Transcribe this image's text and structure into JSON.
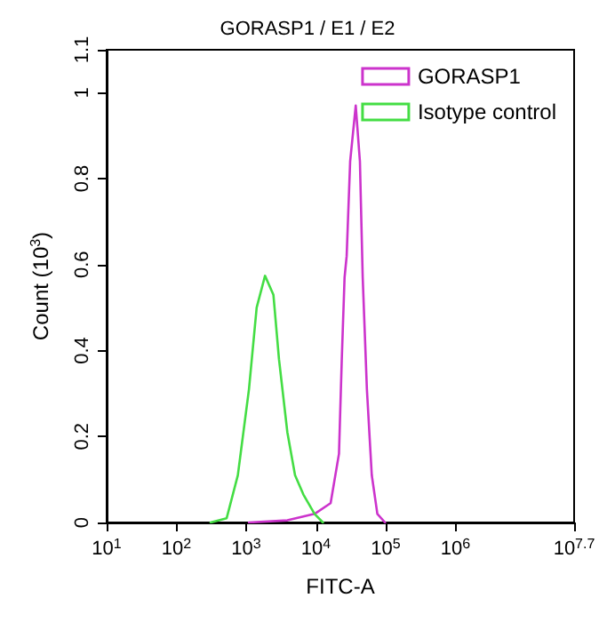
{
  "chart_data": {
    "type": "line",
    "title": "GORASP1 / E1 / E2",
    "xlabel": "FITC-A",
    "ylabel": "Count (10$^{3}$)",
    "log": "x",
    "xlim": [
      10,
      50118723
    ],
    "xticks": [
      {
        "value": 10,
        "label": "10$^{1}$"
      },
      {
        "value": 100,
        "label": "10$^{2}$"
      },
      {
        "value": 1000,
        "label": "10$^{3}$"
      },
      {
        "value": 10000,
        "label": "10$^{4}$"
      },
      {
        "value": 100000,
        "label": "10$^{5}$"
      },
      {
        "value": 1000000,
        "label": "10$^{6}$"
      },
      {
        "value": 50118723,
        "label": "10$^{7.7}$"
      }
    ],
    "ylim": [
      0,
      1.1
    ],
    "yticks": [
      0,
      0.2,
      0.4,
      0.6,
      0.8,
      1,
      1.1
    ],
    "grid": false,
    "legend": "top right",
    "marker": "none",
    "line_style": "solid",
    "series": [
      {
        "name": "GORASP1",
        "color": "#cc33cc",
        "x": [
          1096,
          3890,
          9550,
          16218,
          21380,
          23442,
          25704,
          27542,
          30903,
          37154,
          42658,
          46774,
          53703,
          63096,
          75858,
          97724
        ],
        "values": [
          0,
          0.005,
          0.02,
          0.045,
          0.16,
          0.38,
          0.57,
          0.62,
          0.84,
          0.97,
          0.84,
          0.57,
          0.31,
          0.11,
          0.02,
          0
        ]
      },
      {
        "name": "Isotype control",
        "color": "#44dd44",
        "x": [
          309,
          525,
          759,
          1096,
          1413,
          1862,
          2455,
          2951,
          3890,
          5012,
          6607,
          9550,
          12589
        ],
        "values": [
          0,
          0.01,
          0.11,
          0.31,
          0.5,
          0.574,
          0.53,
          0.38,
          0.21,
          0.11,
          0.065,
          0.02,
          0
        ]
      }
    ]
  }
}
